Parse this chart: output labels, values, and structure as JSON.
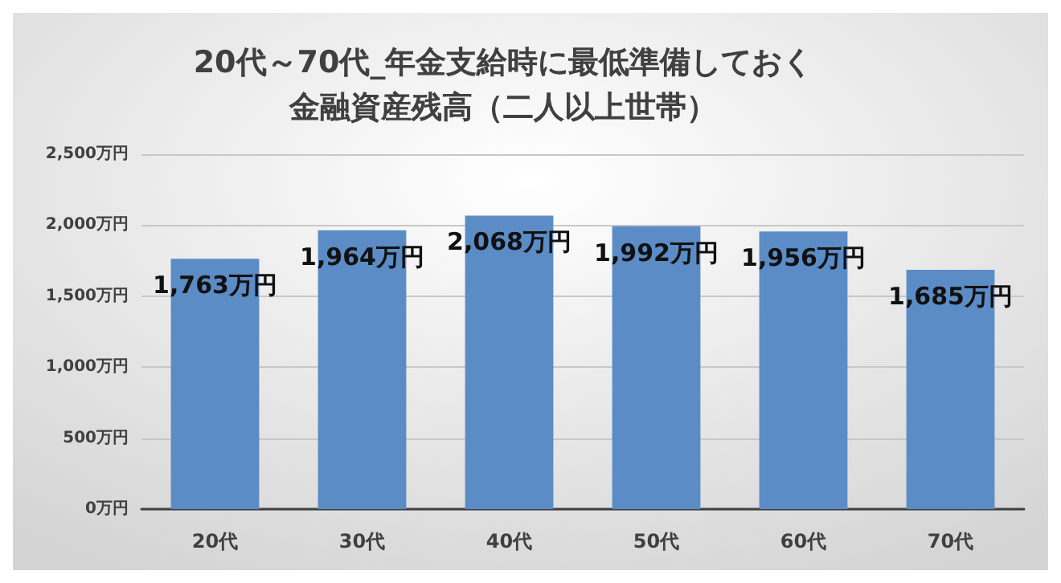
{
  "chart_data": {
    "type": "bar",
    "title": "20代～70代_年金支給時に最低準備しておく金融資産残高（二人以上世帯）",
    "categories": [
      "20代",
      "30代",
      "40代",
      "50代",
      "60代",
      "70代"
    ],
    "values": [
      1763,
      1964,
      2068,
      1992,
      1956,
      1685
    ],
    "value_labels": [
      "1,763万円",
      "1,964万円",
      "2,068万円",
      "1,992万円",
      "1,956万円",
      "1,685万円"
    ],
    "color": "#5b8cc6",
    "ylim": [
      0,
      2500
    ],
    "yticks": [
      {
        "value": 0,
        "label": "0万円"
      },
      {
        "value": 500,
        "label": "500万円"
      },
      {
        "value": 1000,
        "label": "1,000万円"
      },
      {
        "value": 1500,
        "label": "1,500万円"
      },
      {
        "value": 2000,
        "label": "2,000万円"
      },
      {
        "value": 2500,
        "label": "2,500万円"
      }
    ],
    "grid": "y"
  }
}
